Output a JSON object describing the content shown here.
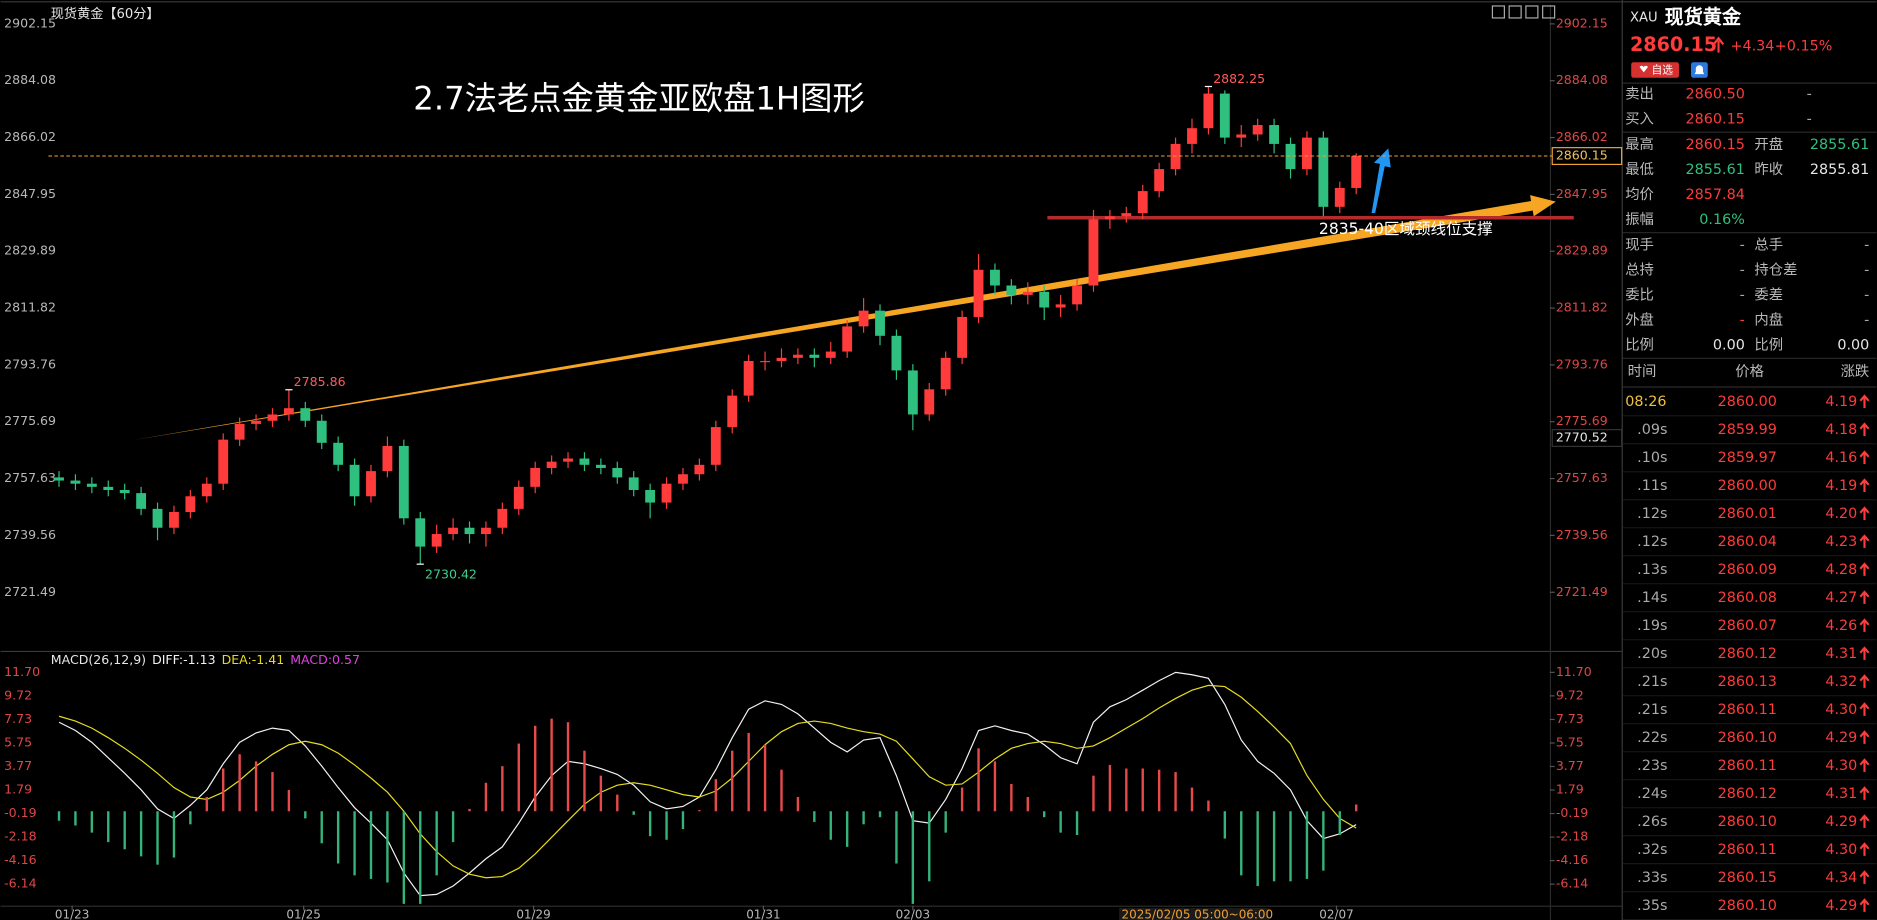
{
  "chart_data": [
    {
      "type": "candlestick",
      "title": "现货黄金【60分】",
      "annotation": "2.7法老点金黄金亚欧盘1H图形",
      "support_label": "2835-40区域颈线位支撑",
      "cursor_label": "2025/02/05 05:00~06:00",
      "xlim": [
        0,
        80
      ],
      "xticks": [
        {
          "value": 1.3,
          "label": "01/23"
        },
        {
          "value": 15.4,
          "label": "01/25"
        },
        {
          "value": 29.4,
          "label": "01/29"
        },
        {
          "value": 43.4,
          "label": "01/31"
        },
        {
          "value": 52.5,
          "label": "02/03"
        },
        {
          "value": 78.3,
          "label": "02/07"
        }
      ],
      "ylim": [
        2704.4,
        2906.7
      ],
      "yticks": [
        2902.15,
        2884.08,
        2866.02,
        2847.95,
        2829.89,
        2811.82,
        2793.76,
        2775.69,
        2757.63,
        2739.56,
        2721.49
      ],
      "price_marks": [
        2860.15,
        2770.52
      ],
      "extreme_labels": [
        2785.86,
        2882.25,
        2730.42
      ],
      "up_color": "#ff3b3b",
      "down_color": "#2fc07f",
      "open": [
        2758,
        2757,
        2756,
        2755,
        2754,
        2753,
        2748,
        2742,
        2747,
        2752,
        2756,
        2770,
        2775,
        2776,
        2778,
        2780,
        2776,
        2769,
        2762,
        2752,
        2760,
        2768,
        2745,
        2736,
        2740,
        2742,
        2740,
        2742,
        2748,
        2755,
        2761,
        2763,
        2764,
        2762,
        2761,
        2758,
        2754,
        2750,
        2756,
        2759,
        2762,
        2774,
        2784,
        2795,
        2795,
        2796,
        2797,
        2796,
        2798,
        2806,
        2811,
        2803,
        2792,
        2778,
        2786,
        2796,
        2809,
        2824,
        2819,
        2816,
        2817,
        2812,
        2813,
        2819,
        2840,
        2841,
        2842,
        2849,
        2856,
        2864,
        2869,
        2880,
        2866,
        2867,
        2870,
        2864,
        2856,
        2866,
        2844,
        2850
      ],
      "high": [
        2760,
        2759,
        2758,
        2757,
        2756,
        2755,
        2750,
        2749,
        2754,
        2758,
        2772,
        2777,
        2778,
        2780,
        2785.86,
        2782,
        2778,
        2771,
        2764,
        2762,
        2771,
        2770,
        2747,
        2743,
        2745,
        2744,
        2744,
        2750,
        2757,
        2763,
        2765,
        2766,
        2766,
        2764,
        2763,
        2760,
        2756,
        2758,
        2761,
        2764,
        2776,
        2786,
        2797,
        2798,
        2799,
        2799,
        2799,
        2801,
        2808,
        2815,
        2813,
        2805,
        2794,
        2788,
        2798,
        2811,
        2829,
        2826,
        2821,
        2820,
        2819,
        2816,
        2821,
        2843,
        2843,
        2844,
        2851,
        2858,
        2866,
        2872,
        2882.25,
        2881,
        2870,
        2872,
        2872,
        2866,
        2868,
        2868,
        2852,
        2861
      ],
      "low": [
        2755,
        2754,
        2753,
        2752,
        2751,
        2746,
        2738,
        2740,
        2745,
        2750,
        2754,
        2768,
        2773,
        2774,
        2776,
        2774,
        2767,
        2760,
        2749,
        2750,
        2758,
        2743,
        2730.42,
        2734,
        2738,
        2737,
        2736,
        2740,
        2746,
        2753,
        2759,
        2761,
        2760,
        2759,
        2756,
        2752,
        2745,
        2748,
        2754,
        2757,
        2760,
        2772,
        2782,
        2792,
        2793,
        2794,
        2793,
        2794,
        2796,
        2804,
        2800,
        2789,
        2773,
        2776,
        2784,
        2794,
        2807,
        2816,
        2813,
        2813,
        2808,
        2809,
        2811,
        2817,
        2837,
        2839,
        2840,
        2847,
        2854,
        2861,
        2867,
        2864,
        2863,
        2865,
        2861,
        2853,
        2854,
        2841,
        2842,
        2848
      ],
      "close": [
        2757,
        2756,
        2755,
        2754,
        2753,
        2748,
        2742,
        2747,
        2752,
        2756,
        2770,
        2775,
        2776,
        2778,
        2780,
        2776,
        2769,
        2762,
        2752,
        2760,
        2768,
        2745,
        2736,
        2740,
        2742,
        2740,
        2742,
        2748,
        2755,
        2761,
        2763,
        2764,
        2762,
        2761,
        2758,
        2754,
        2750,
        2756,
        2759,
        2762,
        2774,
        2784,
        2795,
        2795,
        2796,
        2797,
        2796,
        2798,
        2806,
        2811,
        2803,
        2792,
        2778,
        2786,
        2796,
        2809,
        2824,
        2819,
        2816,
        2817,
        2812,
        2813,
        2819,
        2840,
        2841,
        2842,
        2849,
        2856,
        2864,
        2869,
        2880,
        2866,
        2867,
        2870,
        2864,
        2856,
        2866,
        2844,
        2850,
        2860.15
      ]
    },
    {
      "type": "macd",
      "title": "MACD(26,12,9)",
      "xlim": [
        0,
        80
      ],
      "ylim": [
        -8.05,
        13.11
      ],
      "yticks": [
        {
          "value": 11.7,
          "label": "11.70"
        },
        9.72,
        7.73,
        5.75,
        3.77,
        1.79,
        -0.19,
        -2.18,
        -4.16,
        -6.14
      ],
      "series": [
        {
          "name": "DIFF:-1.13",
          "color": "#f2f2f2",
          "type": "line",
          "values": [
            7.5,
            6.8,
            5.8,
            4.5,
            3.2,
            1.8,
            0.2,
            -0.6,
            0.5,
            1.8,
            4.0,
            5.8,
            6.6,
            7.0,
            6.8,
            5.5,
            3.8,
            2.0,
            0.3,
            -1.0,
            -2.4,
            -5.2,
            -7.1,
            -7.0,
            -6.3,
            -5.2,
            -4.0,
            -3.0,
            -1.0,
            1.2,
            3.0,
            4.2,
            4.0,
            3.6,
            3.1,
            2.2,
            0.8,
            0.2,
            0.4,
            1.2,
            3.5,
            6.2,
            8.6,
            9.3,
            9.0,
            8.2,
            7.0,
            5.8,
            5.0,
            6.0,
            6.2,
            3.0,
            -0.8,
            -1.0,
            1.0,
            3.6,
            6.8,
            7.2,
            6.8,
            6.5,
            5.6,
            4.5,
            4.0,
            7.5,
            8.8,
            9.4,
            10.2,
            11.0,
            11.7,
            11.5,
            11.2,
            9.0,
            6.0,
            4.2,
            3.2,
            1.8,
            -0.8,
            -2.3,
            -1.9,
            -1.13
          ]
        },
        {
          "name": "DEA:-1.41",
          "color": "#e6dc1e",
          "type": "line",
          "values": [
            8.0,
            7.6,
            7.0,
            6.2,
            5.3,
            4.3,
            3.2,
            2.0,
            1.2,
            1.0,
            1.6,
            2.6,
            3.8,
            4.8,
            5.6,
            5.9,
            5.6,
            4.9,
            3.9,
            2.8,
            1.6,
            0.0,
            -1.9,
            -3.4,
            -4.6,
            -5.3,
            -5.6,
            -5.5,
            -4.8,
            -3.6,
            -2.2,
            -0.8,
            0.6,
            1.6,
            2.2,
            2.4,
            2.2,
            1.8,
            1.4,
            1.2,
            1.7,
            2.8,
            4.2,
            5.6,
            6.7,
            7.4,
            7.6,
            7.4,
            7.0,
            6.7,
            6.5,
            5.9,
            4.4,
            2.9,
            2.2,
            2.3,
            3.3,
            4.4,
            5.3,
            5.7,
            5.9,
            5.7,
            5.3,
            5.5,
            6.2,
            7.0,
            7.8,
            8.7,
            9.5,
            10.2,
            10.6,
            10.5,
            9.6,
            8.4,
            7.1,
            5.7,
            3.0,
            1.0,
            -0.6,
            -1.41
          ]
        },
        {
          "name": "MACD:0.57",
          "color": "#e040e0",
          "type": "histogram",
          "up_color": "#e84a4a",
          "down_color": "#35b47a",
          "values": [
            -0.8,
            -1.2,
            -1.8,
            -2.6,
            -3.2,
            -3.8,
            -4.5,
            -3.9,
            -1.1,
            1.2,
            3.6,
            4.8,
            4.2,
            3.3,
            1.8,
            -0.6,
            -2.7,
            -4.4,
            -5.4,
            -5.7,
            -6.0,
            -7.8,
            -7.8,
            -5.4,
            -2.6,
            0.2,
            2.4,
            3.8,
            5.7,
            7.2,
            7.8,
            7.5,
            5.1,
            3.0,
            1.4,
            -0.3,
            -2.1,
            -2.4,
            -1.5,
            0.1,
            2.7,
            5.1,
            6.6,
            5.6,
            3.5,
            1.2,
            -0.9,
            -2.4,
            -3.0,
            -1.1,
            -0.5,
            -4.4,
            -7.8,
            -5.9,
            -1.8,
            2.0,
            5.3,
            4.2,
            2.3,
            1.2,
            -0.5,
            -1.8,
            -2.0,
            3.0,
            3.9,
            3.6,
            3.6,
            3.5,
            3.3,
            2.0,
            0.9,
            -2.3,
            -5.4,
            -6.3,
            -5.9,
            -5.9,
            -5.7,
            -5.0,
            -2.0,
            0.57
          ]
        }
      ]
    }
  ],
  "quote": {
    "symbol": "XAU",
    "name": "现货黄金",
    "price": "2860.15",
    "change": "+4.34",
    "change_pct": "+0.15%",
    "watch_button": "自选",
    "rows": [
      [
        "卖出",
        "2860.50",
        null,
        "-"
      ],
      [
        "买入",
        "2860.15",
        null,
        "-"
      ],
      [
        "最高",
        "2860.15",
        "开盘",
        "2855.61"
      ],
      [
        "最低",
        "2855.61",
        "昨收",
        "2855.81"
      ],
      [
        "均价",
        "2857.84"
      ],
      [
        "振幅",
        "0.16%"
      ],
      [
        "现手",
        "-",
        "总手",
        "-"
      ],
      [
        "总持",
        "-",
        "持仓差",
        "-"
      ],
      [
        "委比",
        "-",
        "委差",
        "-"
      ],
      [
        "外盘",
        "-",
        "内盘",
        "-"
      ],
      [
        "比例",
        "0.00",
        "比例",
        "0.00"
      ]
    ]
  },
  "trades": {
    "columns": [
      "时间",
      "价格",
      "涨跌"
    ],
    "rows": [
      [
        "08:26",
        "2860.00",
        "4.19"
      ],
      [
        ".09s",
        "2859.99",
        "4.18"
      ],
      [
        ".10s",
        "2859.97",
        "4.16"
      ],
      [
        ".11s",
        "2860.00",
        "4.19"
      ],
      [
        ".12s",
        "2860.01",
        "4.20"
      ],
      [
        ".12s",
        "2860.04",
        "4.23"
      ],
      [
        ".13s",
        "2860.09",
        "4.28"
      ],
      [
        ".14s",
        "2860.08",
        "4.27"
      ],
      [
        ".19s",
        "2860.07",
        "4.26"
      ],
      [
        ".20s",
        "2860.12",
        "4.31"
      ],
      [
        ".21s",
        "2860.13",
        "4.32"
      ],
      [
        ".21s",
        "2860.11",
        "4.30"
      ],
      [
        ".22s",
        "2860.10",
        "4.29"
      ],
      [
        ".23s",
        "2860.11",
        "4.30"
      ],
      [
        ".24s",
        "2860.12",
        "4.31"
      ],
      [
        ".26s",
        "2860.10",
        "4.29"
      ],
      [
        ".32s",
        "2860.11",
        "4.30"
      ],
      [
        ".33s",
        "2860.15",
        "4.34"
      ],
      [
        ".35s",
        "2860.10",
        "4.29"
      ]
    ]
  }
}
